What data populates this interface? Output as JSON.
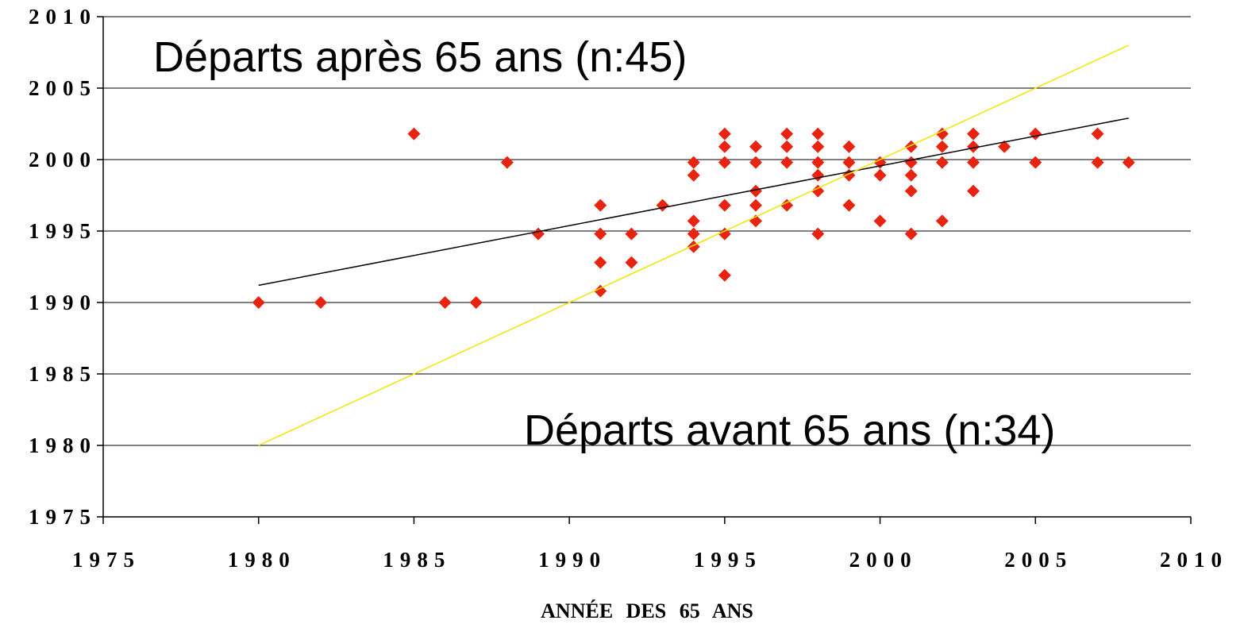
{
  "chart_data": {
    "type": "scatter",
    "x_label": "ANNÉE DES 65 ANS",
    "xlim": [
      1975,
      2010
    ],
    "xticks": [
      1975,
      1980,
      1985,
      1990,
      1995,
      2000,
      2005,
      2010
    ],
    "ylim": [
      1975,
      2010
    ],
    "yticks": [
      1975,
      1980,
      1985,
      1990,
      1995,
      2000,
      2005,
      2010
    ],
    "grid": true,
    "annotations": [
      {
        "text": "Départs après 65 ans (n:45)"
      },
      {
        "text": "Départs avant 65 ans (n:34)"
      }
    ],
    "series": [
      {
        "type": "scatter",
        "color": "#e8230f",
        "x": [
          1980,
          1982,
          1985,
          1986,
          1987,
          1988,
          1989,
          1991,
          1991,
          1991,
          1991,
          1992,
          1992,
          1993,
          1994,
          1994,
          1994,
          1994,
          1994,
          1995,
          1995,
          1995,
          1995,
          1995,
          1995,
          1996,
          1996,
          1996,
          1996,
          1996,
          1997,
          1997,
          1997,
          1997,
          1998,
          1998,
          1998,
          1998,
          1998,
          1998,
          1999,
          1999,
          1999,
          1999,
          2000,
          2000,
          2000,
          2001,
          2001,
          2001,
          2001,
          2001,
          2002,
          2002,
          2002,
          2002,
          2003,
          2003,
          2003,
          2003,
          2004,
          2005,
          2005,
          2007,
          2007,
          2008
        ],
        "values": [
          1990,
          1990,
          2001.8,
          1990,
          1990,
          1999.8,
          1994.8,
          1996.8,
          1994.8,
          1992.8,
          1990.8,
          1994.8,
          1992.8,
          1996.8,
          1999.8,
          1998.9,
          1995.7,
          1994.8,
          1993.9,
          2001.8,
          2000.9,
          1999.8,
          1996.8,
          1994.8,
          1991.9,
          2000.9,
          1999.8,
          1997.8,
          1996.8,
          1995.7,
          2001.8,
          2000.9,
          1999.8,
          1996.8,
          2001.8,
          2000.9,
          1999.8,
          1998.9,
          1997.8,
          1994.8,
          2000.9,
          1999.8,
          1998.9,
          1996.8,
          1999.8,
          1998.9,
          1995.7,
          2000.9,
          1999.8,
          1998.9,
          1997.8,
          1994.8,
          2001.8,
          2000.9,
          1999.8,
          1995.7,
          2001.8,
          2000.9,
          1999.8,
          1997.8,
          2000.9,
          2001.8,
          1999.8,
          2001.8,
          1999.8,
          1999.8
        ]
      },
      {
        "type": "line",
        "color": "#000000",
        "x": [
          1980,
          2008
        ],
        "values": [
          1991.2,
          2002.9
        ]
      },
      {
        "type": "line",
        "color": "#f2e600",
        "x": [
          1980,
          2008
        ],
        "values": [
          1980,
          2008
        ]
      }
    ]
  }
}
